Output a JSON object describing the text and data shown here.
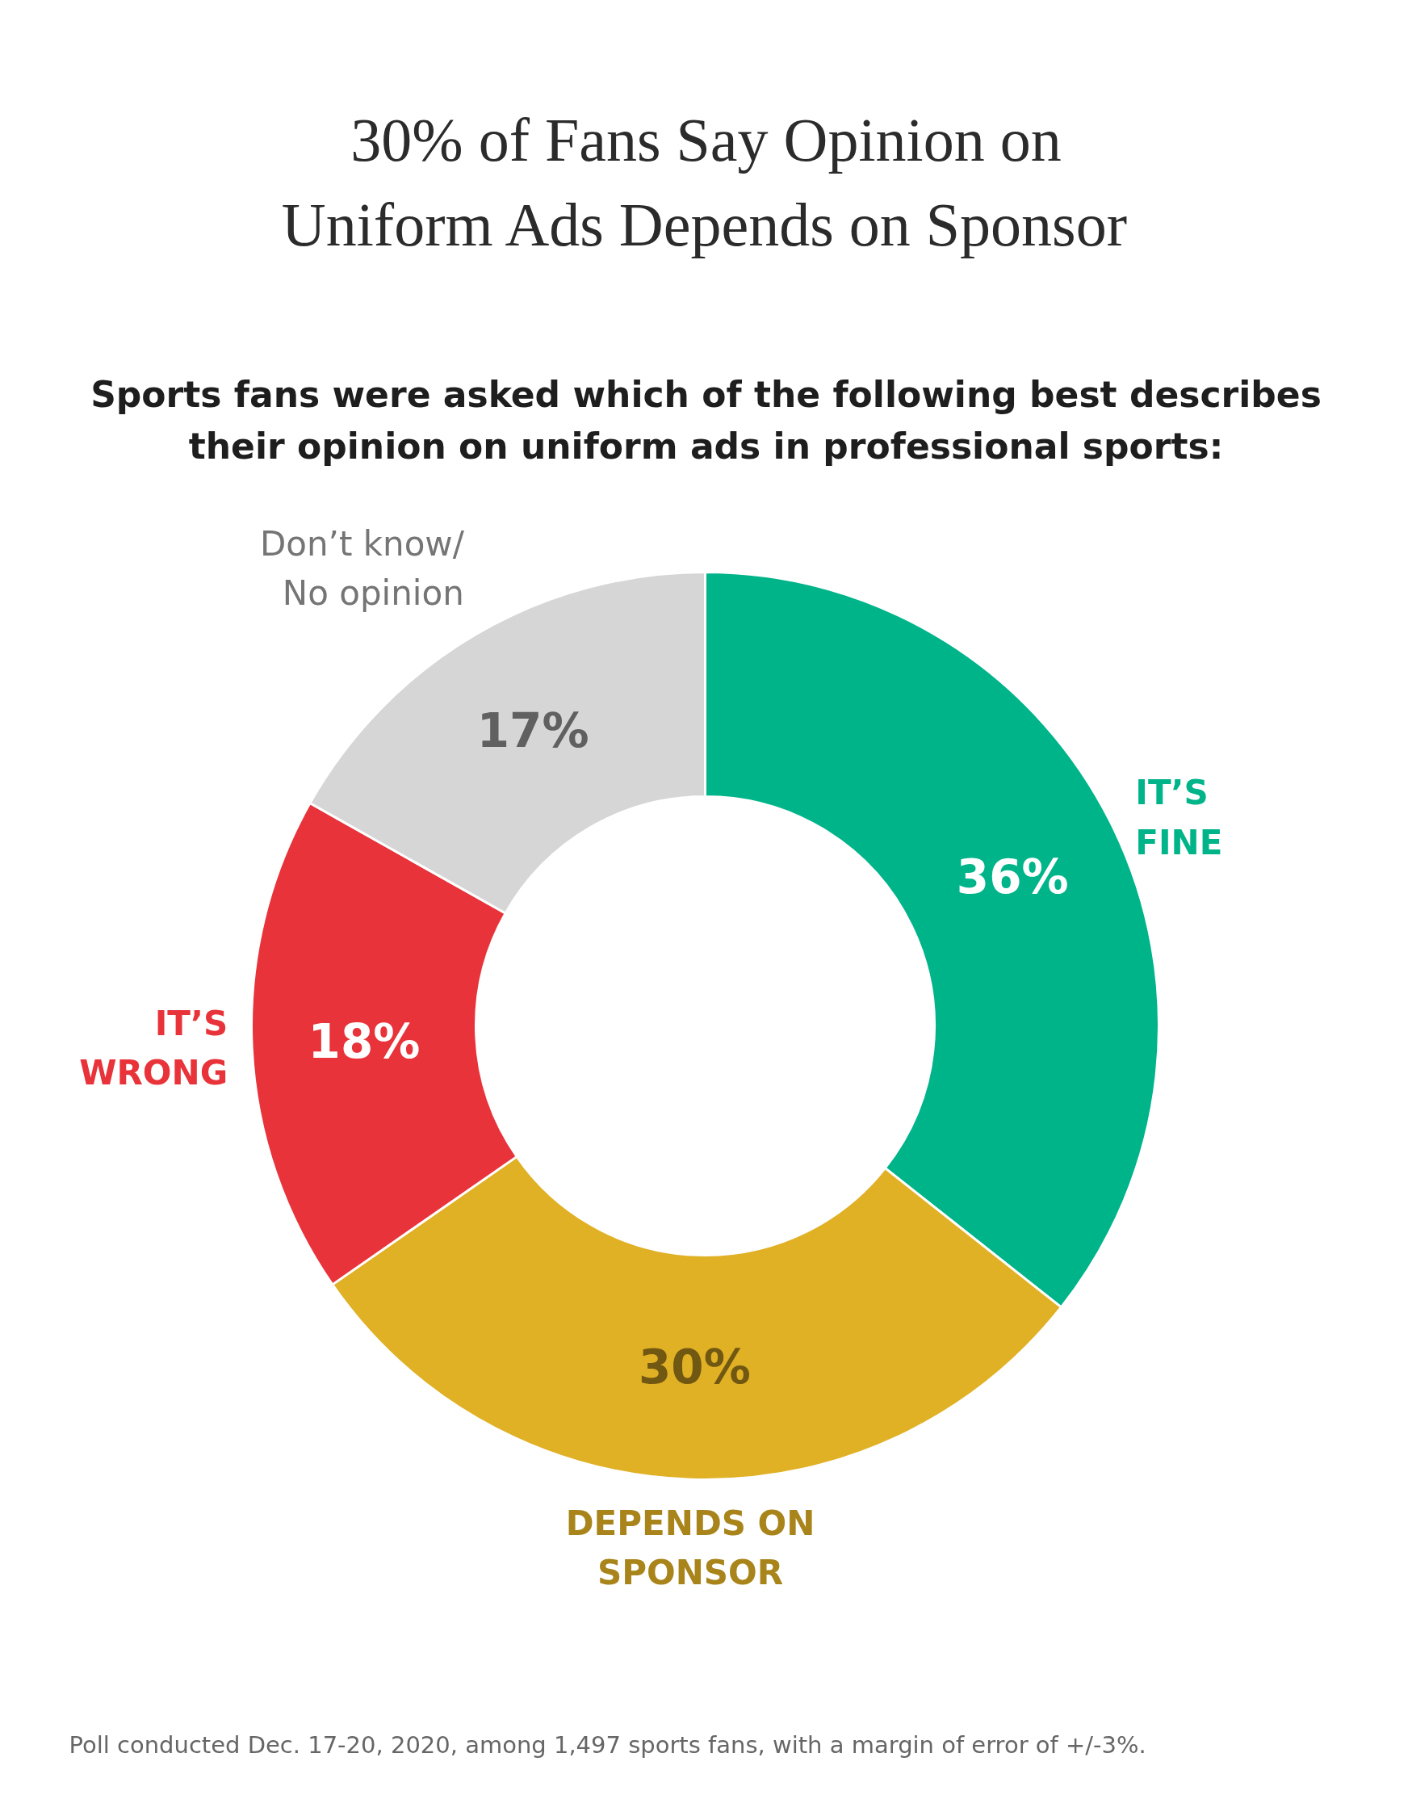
{
  "chart_data": {
    "type": "donut",
    "title": "30% of Fans Say Opinion on\nUniform Ads Depends on Sponsor",
    "subtitle": "Sports fans were asked which of the following best describes\ntheir opinion on uniform ads in professional sports:",
    "categories": [
      "IT’S\nFINE",
      "DEPENDS ON\nSPONSOR",
      "IT’S\nWRONG",
      "Don’t know/\nNo opinion"
    ],
    "values": [
      36,
      30,
      18,
      17
    ],
    "colors": [
      "#00b48a",
      "#e0b025",
      "#e8333a",
      "#d6d6d6"
    ],
    "value_labels": [
      "36%",
      "30%",
      "18%",
      "17%"
    ],
    "annotations": [
      "Poll conducted Dec. 17-20, 2020, among 1,497 sports fans, with a margin of error of +/-3%."
    ]
  }
}
